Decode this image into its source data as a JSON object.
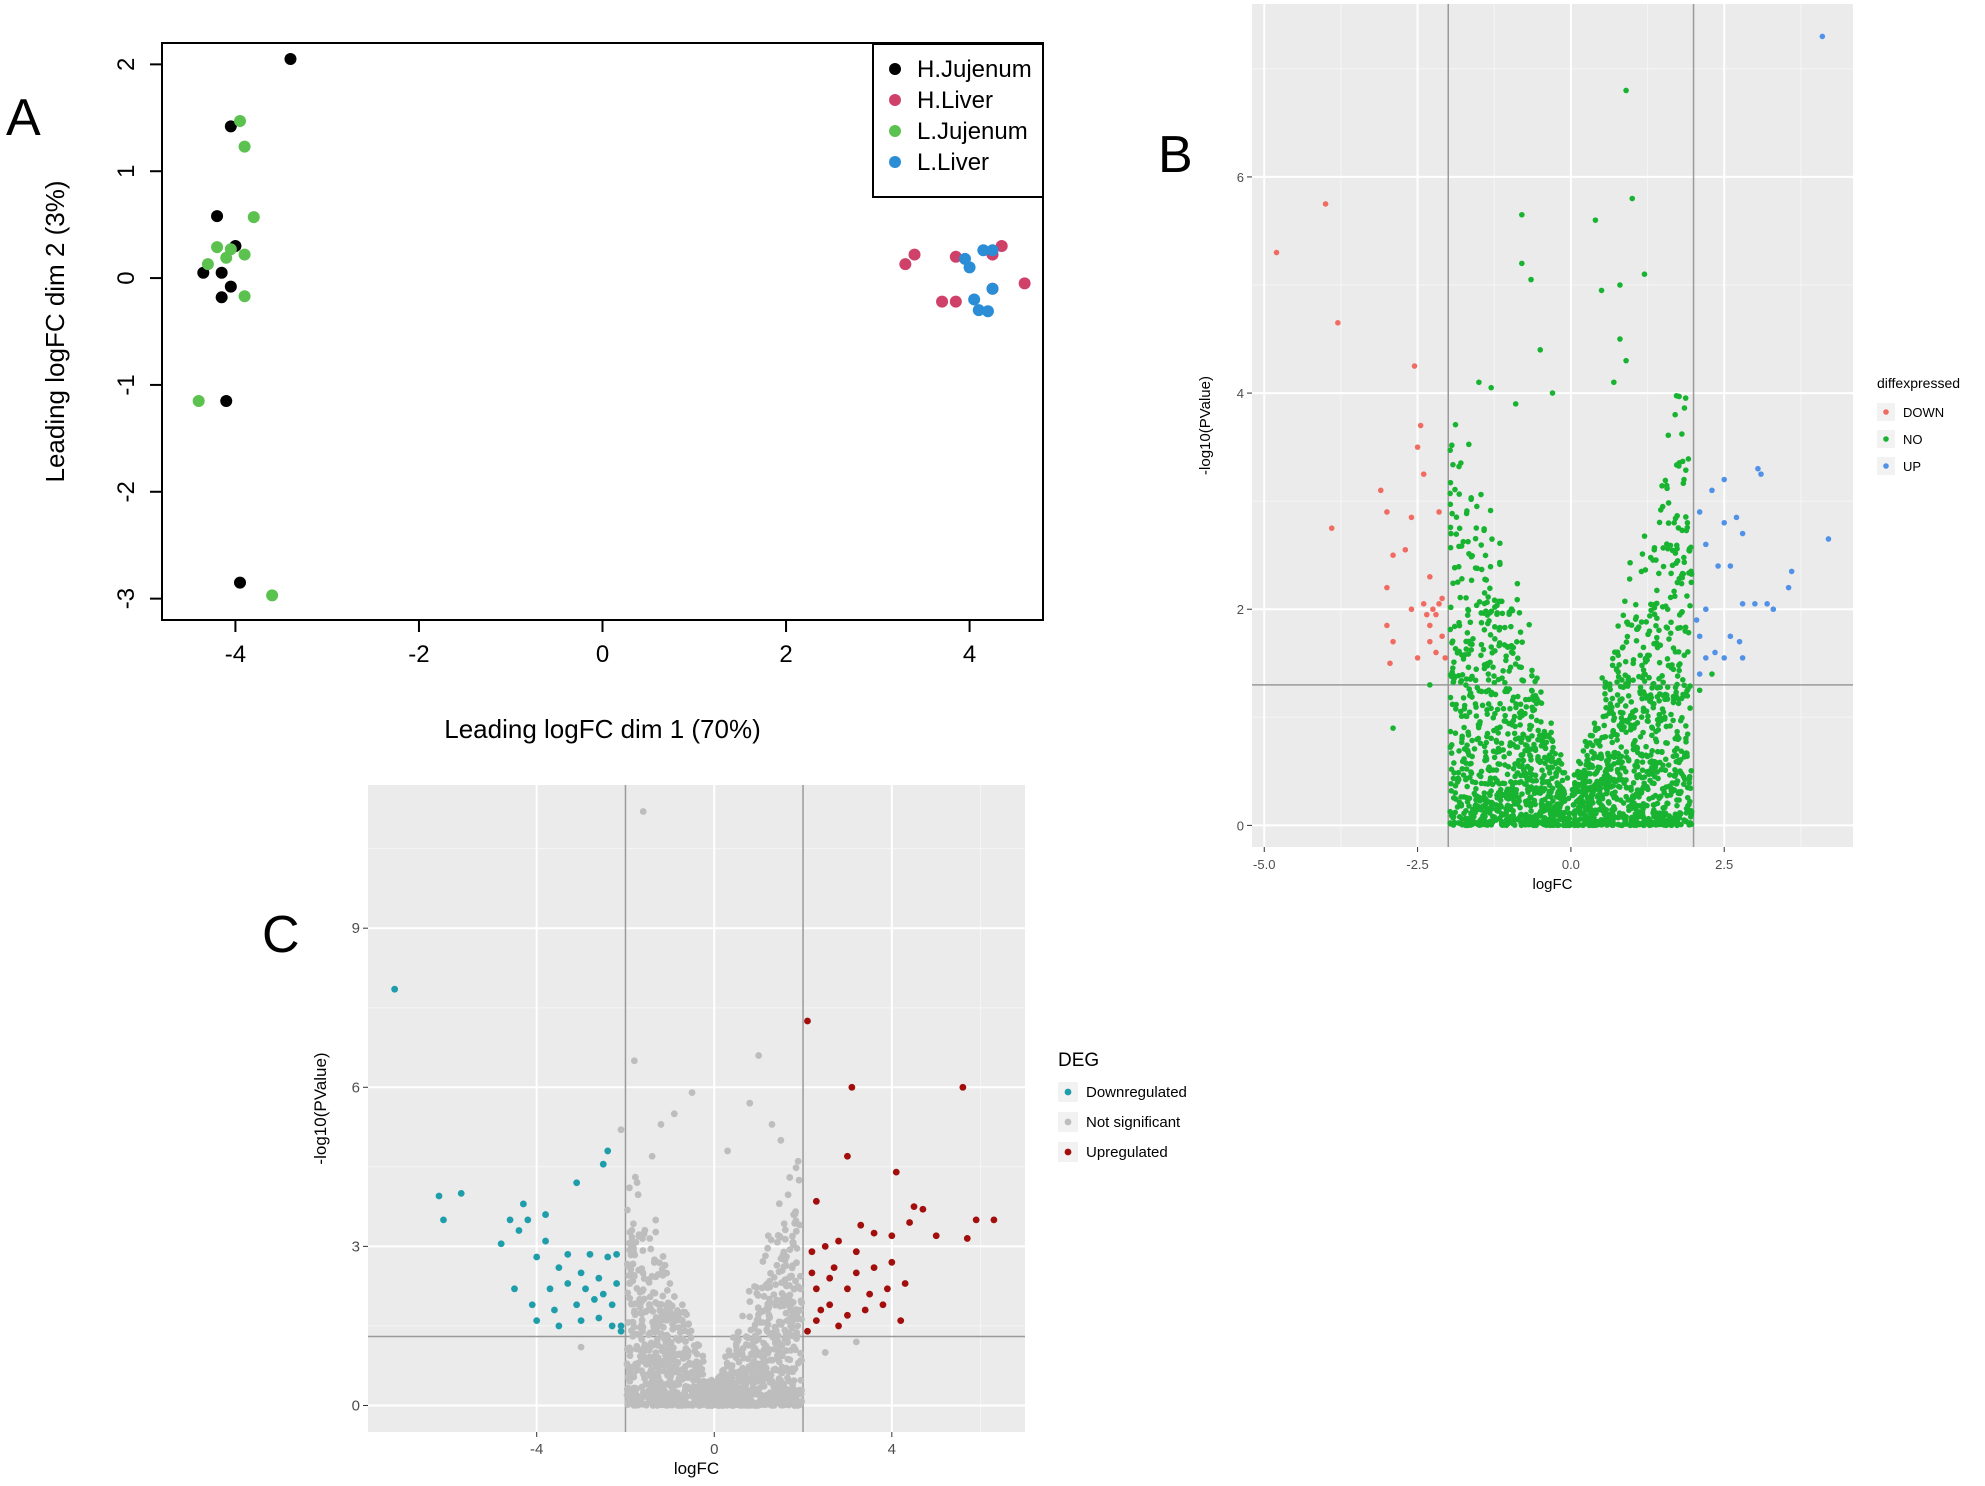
{
  "panel_labels": [
    "A",
    "B",
    "C"
  ],
  "chart_data": [
    {
      "panel": "A",
      "type": "scatter",
      "xlabel": "Leading logFC dim 1 (70%)",
      "ylabel": "Leading logFC dim 2 (3%)",
      "xlim": [
        -4.8,
        4.8
      ],
      "ylim": [
        -3.2,
        2.2
      ],
      "xticks": [
        -4,
        -2,
        0,
        2,
        4
      ],
      "yticks": [
        -3,
        -2,
        -1,
        0,
        1,
        2
      ],
      "grid": false,
      "legend_position": "top-right",
      "series": [
        {
          "name": "H.Jujenum",
          "color": "#000000",
          "points": [
            [
              -3.4,
              2.05
            ],
            [
              -4.05,
              1.42
            ],
            [
              -4.2,
              0.58
            ],
            [
              -4.0,
              0.3
            ],
            [
              -4.35,
              0.05
            ],
            [
              -4.15,
              0.05
            ],
            [
              -4.05,
              -0.08
            ],
            [
              -4.15,
              -0.18
            ],
            [
              -4.1,
              -1.15
            ],
            [
              -3.95,
              -2.85
            ]
          ]
        },
        {
          "name": "H.Liver",
          "color": "#d0416a",
          "points": [
            [
              3.3,
              0.13
            ],
            [
              3.4,
              0.22
            ],
            [
              3.7,
              -0.22
            ],
            [
              3.85,
              -0.22
            ],
            [
              3.85,
              0.2
            ],
            [
              4.25,
              0.22
            ],
            [
              4.35,
              0.3
            ],
            [
              4.6,
              -0.05
            ],
            [
              4.25,
              -0.1
            ]
          ]
        },
        {
          "name": "L.Jujenum",
          "color": "#5cc24f",
          "points": [
            [
              -3.95,
              1.47
            ],
            [
              -3.9,
              1.23
            ],
            [
              -3.8,
              0.57
            ],
            [
              -4.2,
              0.29
            ],
            [
              -4.05,
              0.27
            ],
            [
              -4.1,
              0.19
            ],
            [
              -3.9,
              0.22
            ],
            [
              -4.3,
              0.13
            ],
            [
              -3.9,
              -0.17
            ],
            [
              -4.4,
              -1.15
            ],
            [
              -3.6,
              -2.97
            ]
          ]
        },
        {
          "name": "L.Liver",
          "color": "#2a8dd6",
          "points": [
            [
              3.95,
              0.18
            ],
            [
              4.15,
              0.26
            ],
            [
              4.25,
              0.26
            ],
            [
              4.0,
              0.1
            ],
            [
              4.25,
              -0.1
            ],
            [
              4.05,
              -0.2
            ],
            [
              4.1,
              -0.3
            ],
            [
              4.2,
              -0.31
            ]
          ]
        }
      ]
    },
    {
      "panel": "B",
      "type": "scatter",
      "subtype": "volcano",
      "xlabel": "logFC",
      "ylabel": "-log10(PValue)",
      "xlim": [
        -5.2,
        4.6
      ],
      "ylim": [
        -0.2,
        7.6
      ],
      "xticks": [
        -5.0,
        -2.5,
        0.0,
        2.5
      ],
      "xtick_labels": [
        "-5.0",
        "-2.5",
        "0.0",
        "2.5"
      ],
      "yticks": [
        0,
        2,
        4,
        6
      ],
      "vlines": [
        -2,
        2
      ],
      "hline": 1.3,
      "grid": true,
      "legend_title": "diffexpressed",
      "legend_position": "right",
      "series": [
        {
          "name": "DOWN",
          "color": "#f06c62",
          "points": [
            [
              -4.8,
              5.3
            ],
            [
              -4.0,
              5.75
            ],
            [
              -3.8,
              4.65
            ],
            [
              -3.9,
              2.75
            ],
            [
              -3.1,
              3.1
            ],
            [
              -3.0,
              2.9
            ],
            [
              -2.9,
              2.5
            ],
            [
              -2.7,
              2.55
            ],
            [
              -2.6,
              2.85
            ],
            [
              -2.55,
              4.25
            ],
            [
              -2.5,
              3.5
            ],
            [
              -2.45,
              3.7
            ],
            [
              -2.4,
              3.25
            ],
            [
              -2.3,
              2.3
            ],
            [
              -2.25,
              2.0
            ],
            [
              -2.2,
              1.95
            ],
            [
              -2.15,
              2.9
            ],
            [
              -2.1,
              2.1
            ],
            [
              -2.05,
              1.55
            ],
            [
              -3.0,
              2.2
            ],
            [
              -3.0,
              1.85
            ],
            [
              -2.9,
              1.7
            ],
            [
              -2.95,
              1.5
            ],
            [
              -2.4,
              2.05
            ],
            [
              -2.3,
              1.7
            ],
            [
              -2.2,
              1.6
            ],
            [
              -2.6,
              2.0
            ],
            [
              -2.5,
              1.55
            ],
            [
              -2.3,
              1.85
            ],
            [
              -2.1,
              1.75
            ],
            [
              -2.15,
              2.05
            ],
            [
              -2.35,
              1.95
            ]
          ]
        },
        {
          "name": "NO",
          "color": "#18b431",
          "points": [
            [
              0.9,
              6.8
            ],
            [
              -0.8,
              5.65
            ],
            [
              0.4,
              5.6
            ],
            [
              1.0,
              5.8
            ],
            [
              -0.8,
              5.2
            ],
            [
              -0.65,
              5.05
            ],
            [
              1.2,
              5.1
            ],
            [
              0.8,
              5.0
            ],
            [
              0.5,
              4.95
            ],
            [
              -0.5,
              4.4
            ],
            [
              0.8,
              4.5
            ],
            [
              -1.5,
              4.1
            ],
            [
              -1.3,
              4.05
            ],
            [
              -0.9,
              3.9
            ],
            [
              0.9,
              4.3
            ],
            [
              1.7,
              3.8
            ],
            [
              -2.3,
              1.3
            ],
            [
              -2.9,
              0.9
            ],
            [
              2.1,
              1.25
            ],
            [
              2.3,
              1.4
            ],
            [
              1.9,
              2.8
            ],
            [
              -0.3,
              4.0
            ],
            [
              0.7,
              4.1
            ]
          ]
        },
        {
          "name": "UP",
          "color": "#5192e8",
          "points": [
            [
              4.1,
              7.3
            ],
            [
              3.1,
              3.25
            ],
            [
              3.05,
              3.3
            ],
            [
              2.5,
              3.2
            ],
            [
              2.3,
              3.1
            ],
            [
              2.1,
              2.9
            ],
            [
              2.5,
              2.8
            ],
            [
              2.7,
              2.85
            ],
            [
              2.8,
              2.7
            ],
            [
              2.6,
              2.4
            ],
            [
              2.4,
              2.4
            ],
            [
              2.2,
              2.6
            ],
            [
              3.6,
              2.35
            ],
            [
              4.2,
              2.65
            ],
            [
              3.55,
              2.2
            ],
            [
              3.3,
              2.0
            ],
            [
              3.0,
              2.05
            ],
            [
              2.8,
              2.05
            ],
            [
              2.2,
              2.0
            ],
            [
              2.05,
              1.9
            ],
            [
              2.1,
              1.75
            ],
            [
              2.6,
              1.75
            ],
            [
              2.35,
              1.6
            ],
            [
              2.5,
              1.55
            ],
            [
              2.8,
              1.55
            ],
            [
              2.2,
              1.55
            ],
            [
              2.1,
              1.4
            ],
            [
              2.75,
              1.7
            ],
            [
              3.2,
              2.05
            ]
          ]
        }
      ]
    },
    {
      "panel": "C",
      "type": "scatter",
      "subtype": "volcano",
      "xlabel": "logFC",
      "ylabel": "-log10(PValue)",
      "xlim": [
        -7.8,
        7.0
      ],
      "ylim": [
        -0.5,
        11.7
      ],
      "xticks": [
        -4,
        0,
        4
      ],
      "yticks": [
        0,
        3,
        6,
        9
      ],
      "vlines": [
        -2,
        2
      ],
      "hline": 1.3,
      "grid": true,
      "legend_title": "DEG",
      "legend_position": "right",
      "series": [
        {
          "name": "Downregulated",
          "color": "#1e9eaa",
          "points": [
            [
              -7.2,
              7.85
            ],
            [
              -6.2,
              3.95
            ],
            [
              -6.1,
              3.5
            ],
            [
              -5.7,
              4.0
            ],
            [
              -4.6,
              3.5
            ],
            [
              -4.4,
              3.3
            ],
            [
              -4.3,
              3.8
            ],
            [
              -4.2,
              3.5
            ],
            [
              -3.8,
              3.6
            ],
            [
              -3.8,
              3.1
            ],
            [
              -4.8,
              3.05
            ],
            [
              -3.1,
              4.2
            ],
            [
              -2.5,
              4.55
            ],
            [
              -2.4,
              4.8
            ],
            [
              -4.5,
              2.2
            ],
            [
              -4.0,
              2.8
            ],
            [
              -3.7,
              2.2
            ],
            [
              -3.5,
              2.6
            ],
            [
              -3.3,
              2.85
            ],
            [
              -3.0,
              2.5
            ],
            [
              -2.8,
              2.85
            ],
            [
              -2.6,
              2.4
            ],
            [
              -2.4,
              2.8
            ],
            [
              -2.2,
              2.85
            ],
            [
              -4.1,
              1.9
            ],
            [
              -3.6,
              1.8
            ],
            [
              -3.1,
              1.9
            ],
            [
              -2.7,
              2.0
            ],
            [
              -2.3,
              1.9
            ],
            [
              -2.1,
              1.5
            ],
            [
              -4.0,
              1.6
            ],
            [
              -3.5,
              1.5
            ],
            [
              -3.0,
              1.6
            ],
            [
              -2.6,
              1.65
            ],
            [
              -2.3,
              1.5
            ],
            [
              -2.1,
              1.4
            ],
            [
              -3.3,
              2.3
            ],
            [
              -2.9,
              2.2
            ],
            [
              -2.5,
              2.1
            ],
            [
              -2.2,
              2.3
            ]
          ]
        },
        {
          "name": "Not significant",
          "color": "#bdbdbd",
          "points": [
            [
              -1.6,
              11.2
            ],
            [
              -1.8,
              6.5
            ],
            [
              1.0,
              6.6
            ],
            [
              -0.5,
              5.9
            ],
            [
              0.8,
              5.7
            ],
            [
              -0.9,
              5.5
            ],
            [
              1.3,
              5.3
            ],
            [
              1.5,
              5.0
            ],
            [
              -1.2,
              5.3
            ],
            [
              -2.1,
              5.2
            ],
            [
              0.3,
              4.8
            ],
            [
              -3.0,
              1.1
            ],
            [
              2.5,
              1.0
            ],
            [
              3.2,
              1.2
            ],
            [
              1.7,
              4.3
            ],
            [
              -1.4,
              4.7
            ]
          ]
        },
        {
          "name": "Upregulated",
          "color": "#a10e0c",
          "points": [
            [
              2.1,
              7.25
            ],
            [
              3.1,
              6.0
            ],
            [
              5.6,
              6.0
            ],
            [
              3.0,
              4.7
            ],
            [
              4.1,
              4.4
            ],
            [
              2.3,
              3.85
            ],
            [
              3.3,
              3.4
            ],
            [
              4.5,
              3.75
            ],
            [
              4.7,
              3.7
            ],
            [
              4.4,
              3.45
            ],
            [
              5.9,
              3.5
            ],
            [
              6.3,
              3.5
            ],
            [
              5.7,
              3.15
            ],
            [
              5.0,
              3.2
            ],
            [
              4.0,
              3.2
            ],
            [
              3.6,
              3.25
            ],
            [
              3.2,
              2.9
            ],
            [
              2.8,
              3.1
            ],
            [
              2.5,
              3.0
            ],
            [
              2.2,
              2.9
            ],
            [
              4.3,
              2.3
            ],
            [
              3.9,
              2.2
            ],
            [
              3.5,
              2.1
            ],
            [
              3.0,
              2.2
            ],
            [
              2.6,
              2.4
            ],
            [
              2.3,
              2.2
            ],
            [
              4.2,
              1.6
            ],
            [
              3.8,
              1.9
            ],
            [
              3.4,
              1.8
            ],
            [
              3.0,
              1.7
            ],
            [
              2.6,
              1.9
            ],
            [
              2.3,
              1.6
            ],
            [
              2.1,
              1.4
            ],
            [
              2.8,
              1.5
            ],
            [
              2.4,
              1.8
            ],
            [
              3.2,
              2.5
            ],
            [
              2.7,
              2.6
            ],
            [
              2.2,
              2.5
            ],
            [
              3.6,
              2.6
            ],
            [
              4.0,
              2.7
            ]
          ]
        }
      ]
    }
  ]
}
